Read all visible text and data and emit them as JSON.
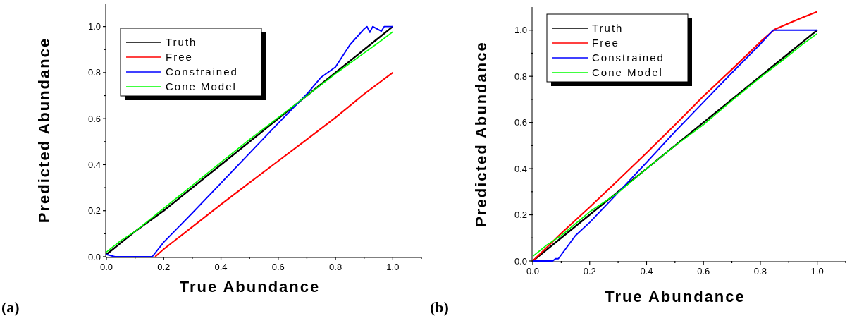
{
  "chart_data": [
    {
      "type": "line",
      "xlabel": "True Abundance",
      "ylabel": "Predicted Abundance",
      "annotations": [
        "(a)"
      ],
      "legend": "top left",
      "xlim": [
        0,
        1.1
      ],
      "ylim": [
        0,
        1.1
      ],
      "xticks": [
        {
          "value": 0,
          "label": "0.0"
        },
        {
          "value": 0.1,
          "label": null
        },
        {
          "value": 0.2,
          "label": "0.2"
        },
        {
          "value": 0.3,
          "label": null
        },
        {
          "value": 0.4,
          "label": "0.4"
        },
        {
          "value": 0.5,
          "label": null
        },
        {
          "value": 0.6,
          "label": "0.6"
        },
        {
          "value": 0.7,
          "label": null
        },
        {
          "value": 0.8,
          "label": "0.8"
        },
        {
          "value": 0.9,
          "label": null
        },
        {
          "value": 1,
          "label": "1.0"
        },
        {
          "value": 1.1,
          "label": null
        }
      ],
      "yticks": [
        {
          "value": 0,
          "label": "0.0"
        },
        {
          "value": 0.1,
          "label": null
        },
        {
          "value": 0.2,
          "label": "0.2"
        },
        {
          "value": 0.3,
          "label": null
        },
        {
          "value": 0.4,
          "label": "0.4"
        },
        {
          "value": 0.5,
          "label": null
        },
        {
          "value": 0.6,
          "label": "0.6"
        },
        {
          "value": 0.7,
          "label": null
        },
        {
          "value": 0.8,
          "label": "0.8"
        },
        {
          "value": 0.9,
          "label": null
        },
        {
          "value": 1,
          "label": "1.0"
        }
      ],
      "series": [
        {
          "name": "Truth",
          "color": "#000000",
          "x": [
            0,
            0.05,
            0.1,
            0.2,
            0.3,
            0.4,
            0.5,
            0.6,
            0.7,
            0.8,
            0.9,
            0.95,
            1.0
          ],
          "values": [
            0.01,
            0.06,
            0.11,
            0.2,
            0.3,
            0.4,
            0.5,
            0.6,
            0.7,
            0.8,
            0.9,
            0.95,
            1.0
          ]
        },
        {
          "name": "Free",
          "color": "#ff0000",
          "x": [
            0.17,
            0.2,
            0.3,
            0.4,
            0.5,
            0.6,
            0.7,
            0.8,
            0.9,
            1.0
          ],
          "values": [
            0,
            0.033,
            0.13,
            0.227,
            0.322,
            0.416,
            0.51,
            0.605,
            0.707,
            0.8
          ]
        },
        {
          "name": "Constrained",
          "color": "#0000ff",
          "x": [
            0,
            0.03,
            0.15,
            0.16,
            0.2,
            0.3,
            0.4,
            0.5,
            0.6,
            0.7,
            0.75,
            0.8,
            0.85,
            0.9,
            0.91,
            0.92,
            0.93,
            0.96,
            0.97,
            1.0
          ],
          "values": [
            0.01,
            0,
            0,
            0,
            0.063,
            0.19,
            0.32,
            0.45,
            0.58,
            0.707,
            0.78,
            0.824,
            0.92,
            0.99,
            1.0,
            0.975,
            1.0,
            0.98,
            1.0,
            1.0
          ]
        },
        {
          "name": "Cone Model",
          "color": "#00ff00",
          "x": [
            0,
            0.05,
            0.1,
            0.2,
            0.3,
            0.4,
            0.5,
            0.6,
            0.7,
            0.8,
            0.9,
            0.95,
            1.0
          ],
          "values": [
            0.02,
            0.07,
            0.11,
            0.21,
            0.31,
            0.41,
            0.51,
            0.605,
            0.7,
            0.795,
            0.885,
            0.93,
            0.977
          ]
        }
      ]
    },
    {
      "type": "line",
      "xlabel": "True Abundance",
      "ylabel": "Predicted Abundance",
      "annotations": [
        "(b)"
      ],
      "legend": "top left",
      "xlim": [
        0,
        1.1
      ],
      "ylim": [
        0,
        1.1
      ],
      "xticks": [
        {
          "value": 0,
          "label": "0.0"
        },
        {
          "value": 0.1,
          "label": null
        },
        {
          "value": 0.2,
          "label": "0.2"
        },
        {
          "value": 0.3,
          "label": null
        },
        {
          "value": 0.4,
          "label": "0.4"
        },
        {
          "value": 0.5,
          "label": null
        },
        {
          "value": 0.6,
          "label": "0.6"
        },
        {
          "value": 0.7,
          "label": null
        },
        {
          "value": 0.8,
          "label": "0.8"
        },
        {
          "value": 0.9,
          "label": null
        },
        {
          "value": 1,
          "label": "1.0"
        },
        {
          "value": 1.1,
          "label": null
        }
      ],
      "yticks": [
        {
          "value": 0,
          "label": "0.0"
        },
        {
          "value": 0.1,
          "label": null
        },
        {
          "value": 0.2,
          "label": "0.2"
        },
        {
          "value": 0.3,
          "label": null
        },
        {
          "value": 0.4,
          "label": "0.4"
        },
        {
          "value": 0.5,
          "label": null
        },
        {
          "value": 0.6,
          "label": "0.6"
        },
        {
          "value": 0.7,
          "label": null
        },
        {
          "value": 0.8,
          "label": "0.8"
        },
        {
          "value": 0.9,
          "label": null
        },
        {
          "value": 1,
          "label": "1.0"
        }
      ],
      "series": [
        {
          "name": "Truth",
          "color": "#000000",
          "x": [
            0,
            0.05,
            0.1,
            0.2,
            0.3,
            0.4,
            0.5,
            0.6,
            0.7,
            0.8,
            0.9,
            0.95,
            1.0
          ],
          "values": [
            0,
            0.05,
            0.1,
            0.2,
            0.3,
            0.4,
            0.5,
            0.6,
            0.7,
            0.8,
            0.9,
            0.95,
            1.0
          ]
        },
        {
          "name": "Free",
          "color": "#ff0000",
          "x": [
            0,
            0.1,
            0.2,
            0.3,
            0.4,
            0.5,
            0.6,
            0.7,
            0.8,
            0.85,
            0.9,
            0.95,
            1.0
          ],
          "values": [
            0,
            0.12,
            0.233,
            0.35,
            0.468,
            0.59,
            0.714,
            0.83,
            0.949,
            1.003,
            1.03,
            1.056,
            1.08
          ]
        },
        {
          "name": "Constrained",
          "color": "#0000ff",
          "x": [
            0,
            0.05,
            0.06,
            0.07,
            0.08,
            0.09,
            0.15,
            0.2,
            0.3,
            0.4,
            0.5,
            0.6,
            0.7,
            0.8,
            0.845,
            1.0
          ],
          "values": [
            0,
            0,
            0,
            0,
            0.01,
            0.01,
            0.11,
            0.167,
            0.296,
            0.427,
            0.56,
            0.688,
            0.815,
            0.939,
            1.0,
            1.0
          ]
        },
        {
          "name": "Cone Model",
          "color": "#00ff00",
          "x": [
            0,
            0.05,
            0.1,
            0.2,
            0.3,
            0.4,
            0.5,
            0.6,
            0.7,
            0.8,
            0.9,
            0.95,
            1.0
          ],
          "values": [
            0.02,
            0.07,
            0.11,
            0.213,
            0.296,
            0.4,
            0.499,
            0.59,
            0.695,
            0.795,
            0.89,
            0.94,
            0.985
          ]
        }
      ]
    }
  ]
}
